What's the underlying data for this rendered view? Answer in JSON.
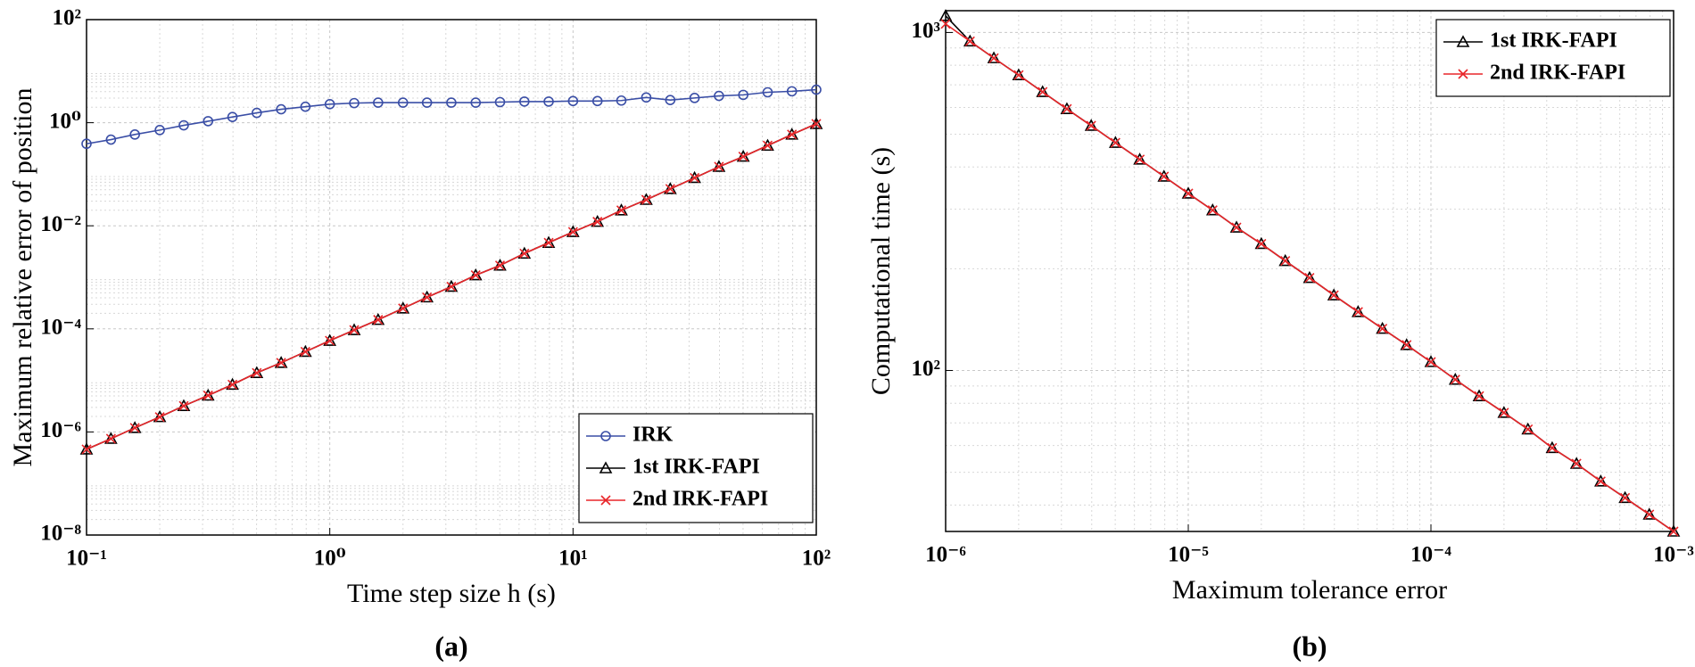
{
  "chart_data": [
    {
      "type": "line",
      "label": "(a)",
      "xlabel": "Time step size h (s)",
      "ylabel": "Maximum relative error of position",
      "xscale": "log",
      "yscale": "log",
      "grid": true,
      "minor_grid": true,
      "legend": "lower right",
      "xlim": [
        0.1,
        100
      ],
      "ylim": [
        1e-08,
        100
      ],
      "xticks": [
        {
          "value": 0.1,
          "label": "10⁻¹"
        },
        {
          "value": 1,
          "label": "10⁰"
        },
        {
          "value": 10,
          "label": "10¹"
        },
        {
          "value": 100,
          "label": "10²"
        }
      ],
      "yticks": [
        {
          "value": 1e-08,
          "label": "10⁻⁸"
        },
        {
          "value": 1e-06,
          "label": "10⁻⁶"
        },
        {
          "value": 0.0001,
          "label": "10⁻⁴"
        },
        {
          "value": 0.01,
          "label": "10⁻²"
        },
        {
          "value": 1,
          "label": "10⁰"
        },
        {
          "value": 100,
          "label": "10²"
        }
      ],
      "x": [
        0.1,
        0.126,
        0.158,
        0.2,
        0.251,
        0.316,
        0.398,
        0.501,
        0.631,
        0.794,
        1,
        1.26,
        1.58,
        2,
        2.51,
        3.16,
        3.98,
        5.01,
        6.31,
        7.94,
        10,
        12.6,
        15.8,
        20,
        25.1,
        31.6,
        39.8,
        50.1,
        63.1,
        79.4,
        100
      ],
      "series": [
        {
          "name": "IRK",
          "color": "#3a4ea6",
          "marker": "o",
          "values": [
            0.39,
            0.47,
            0.59,
            0.72,
            0.89,
            1.07,
            1.29,
            1.55,
            1.82,
            2.04,
            2.29,
            2.4,
            2.45,
            2.45,
            2.45,
            2.45,
            2.45,
            2.51,
            2.57,
            2.57,
            2.63,
            2.63,
            2.69,
            3.09,
            2.75,
            3.02,
            3.31,
            3.47,
            3.89,
            4.07,
            4.37
          ]
        },
        {
          "name": "1st IRK-FAPI",
          "color": "#000000",
          "marker": "^",
          "values": [
            4.6e-07,
            7.4e-07,
            1.2e-06,
            1.95e-06,
            3.2e-06,
            5.1e-06,
            8.3e-06,
            1.4e-05,
            2.2e-05,
            3.6e-05,
            5.9e-05,
            9.5e-05,
            0.00015,
            0.00025,
            0.00041,
            0.00066,
            0.0011,
            0.0017,
            0.0029,
            0.0047,
            0.0076,
            0.012,
            0.02,
            0.032,
            0.052,
            0.085,
            0.14,
            0.22,
            0.36,
            0.59,
            0.95
          ]
        },
        {
          "name": "2nd IRK-FAPI",
          "color": "#e8262a",
          "marker": "x",
          "values": [
            4.6e-07,
            7.4e-07,
            1.2e-06,
            1.95e-06,
            3.2e-06,
            5.1e-06,
            8.3e-06,
            1.4e-05,
            2.2e-05,
            3.6e-05,
            5.9e-05,
            9.5e-05,
            0.00015,
            0.00025,
            0.00041,
            0.00066,
            0.0011,
            0.0017,
            0.0029,
            0.0047,
            0.0076,
            0.012,
            0.02,
            0.032,
            0.052,
            0.085,
            0.14,
            0.22,
            0.36,
            0.59,
            0.95
          ]
        }
      ]
    },
    {
      "type": "line",
      "label": "(b)",
      "xlabel": "Maximum tolerance error",
      "ylabel": "Computational time (s)",
      "xscale": "log",
      "yscale": "log",
      "grid": true,
      "minor_grid": true,
      "legend": "upper right",
      "xlim": [
        1e-06,
        0.001
      ],
      "ylim": [
        33.4,
        1160
      ],
      "xticks": [
        {
          "value": 1e-06,
          "label": "10⁻⁶"
        },
        {
          "value": 1e-05,
          "label": "10⁻⁵"
        },
        {
          "value": 0.0001,
          "label": "10⁻⁴"
        },
        {
          "value": 0.001,
          "label": "10⁻³"
        }
      ],
      "yticks": [
        {
          "value": 100,
          "label": "10²"
        },
        {
          "value": 1000,
          "label": "10³"
        }
      ],
      "x": [
        1e-06,
        1.26e-06,
        1.58e-06,
        2e-06,
        2.51e-06,
        3.16e-06,
        3.98e-06,
        5.01e-06,
        6.31e-06,
        7.94e-06,
        1e-05,
        1.26e-05,
        1.58e-05,
        2e-05,
        2.51e-05,
        3.16e-05,
        3.98e-05,
        5.01e-05,
        6.31e-05,
        7.94e-05,
        0.0001,
        0.000126,
        0.000158,
        0.0002,
        0.000251,
        0.000316,
        0.000398,
        0.000501,
        0.000631,
        0.000794,
        0.001
      ],
      "series": [
        {
          "name": "1st IRK-FAPI",
          "color": "#000000",
          "marker": "^",
          "values": [
            1120,
            942,
            840,
            748,
            667,
            594,
            530,
            472,
            421,
            375,
            334,
            298,
            265,
            237,
            211,
            188,
            167,
            149,
            133,
            119,
            106,
            94,
            84,
            75,
            67,
            59,
            53,
            47,
            42,
            37.5,
            33.4
          ]
        },
        {
          "name": "2nd IRK-FAPI",
          "color": "#e8262a",
          "marker": "x",
          "values": [
            1060,
            942,
            840,
            748,
            667,
            594,
            530,
            472,
            421,
            375,
            334,
            298,
            265,
            237,
            211,
            188,
            167,
            149,
            133,
            119,
            106,
            94,
            84,
            75,
            67,
            59,
            53,
            47,
            42,
            37.5,
            33.4
          ]
        }
      ]
    }
  ]
}
